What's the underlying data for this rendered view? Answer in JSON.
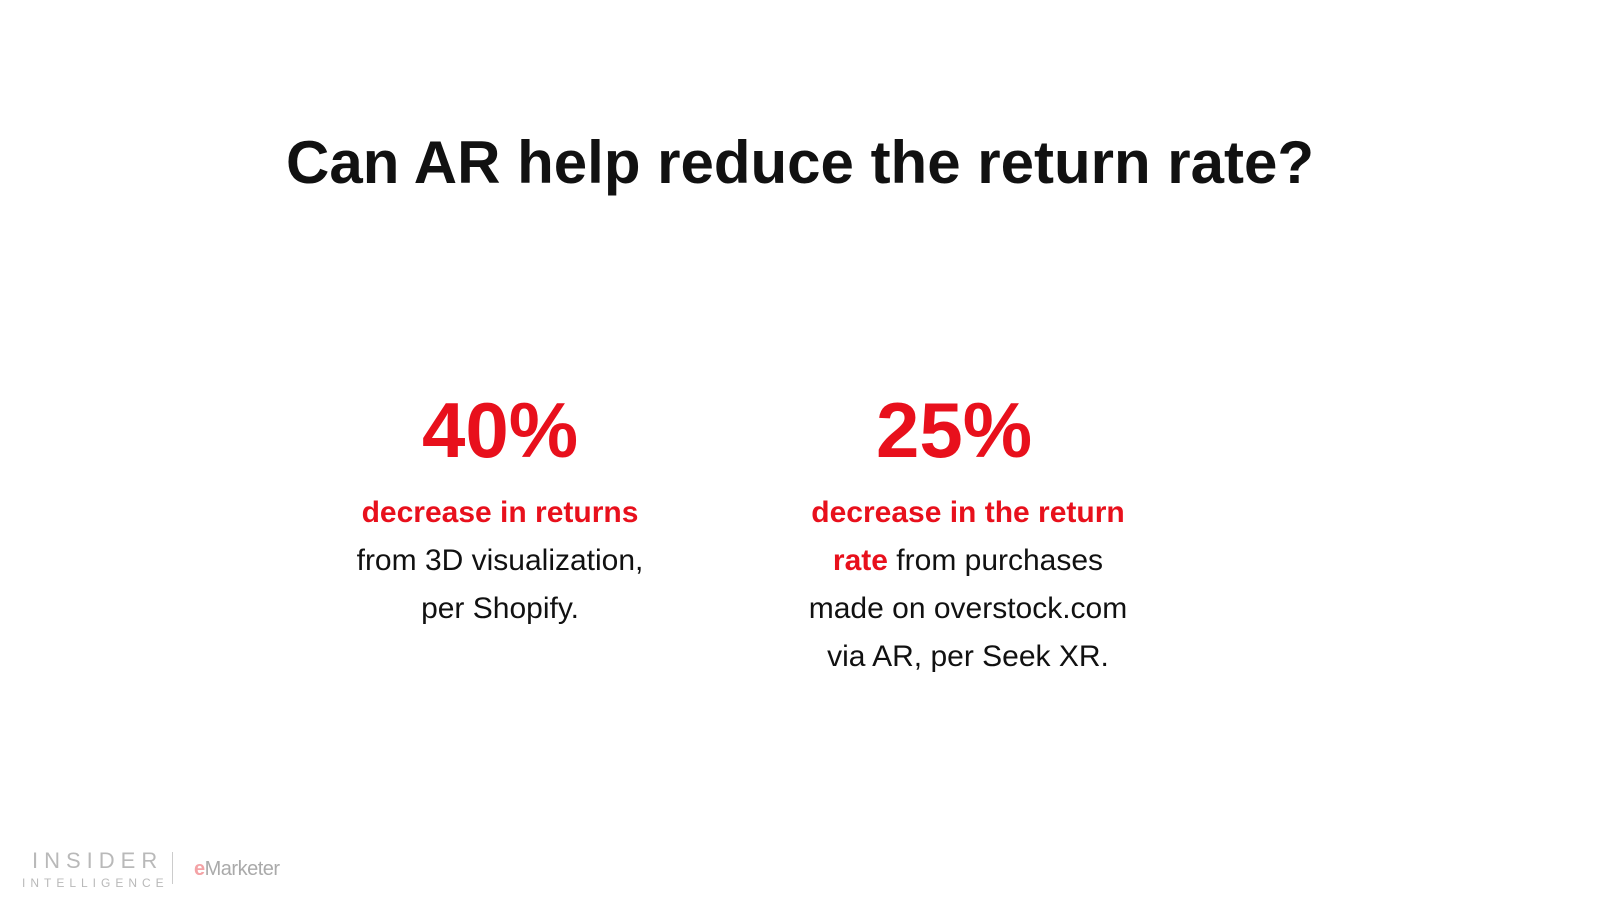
{
  "title": "Can AR help reduce the return rate?",
  "stats": [
    {
      "value": "40%",
      "highlight": "decrease in returns",
      "line1": "from 3D visualization,",
      "line2": "per Shopify."
    },
    {
      "value": "25%",
      "highlight1": "decrease in the return",
      "highlight2": "rate",
      "line1": " from purchases",
      "line2": "made on overstock.com",
      "line3": "via AR, per Seek XR."
    }
  ],
  "footer": {
    "logo1_top": "INSIDER",
    "logo1_bottom": "INTELLIGENCE",
    "logo2_e": "e",
    "logo2_rest": "Marketer"
  },
  "colors": {
    "accent": "#e8101c"
  }
}
